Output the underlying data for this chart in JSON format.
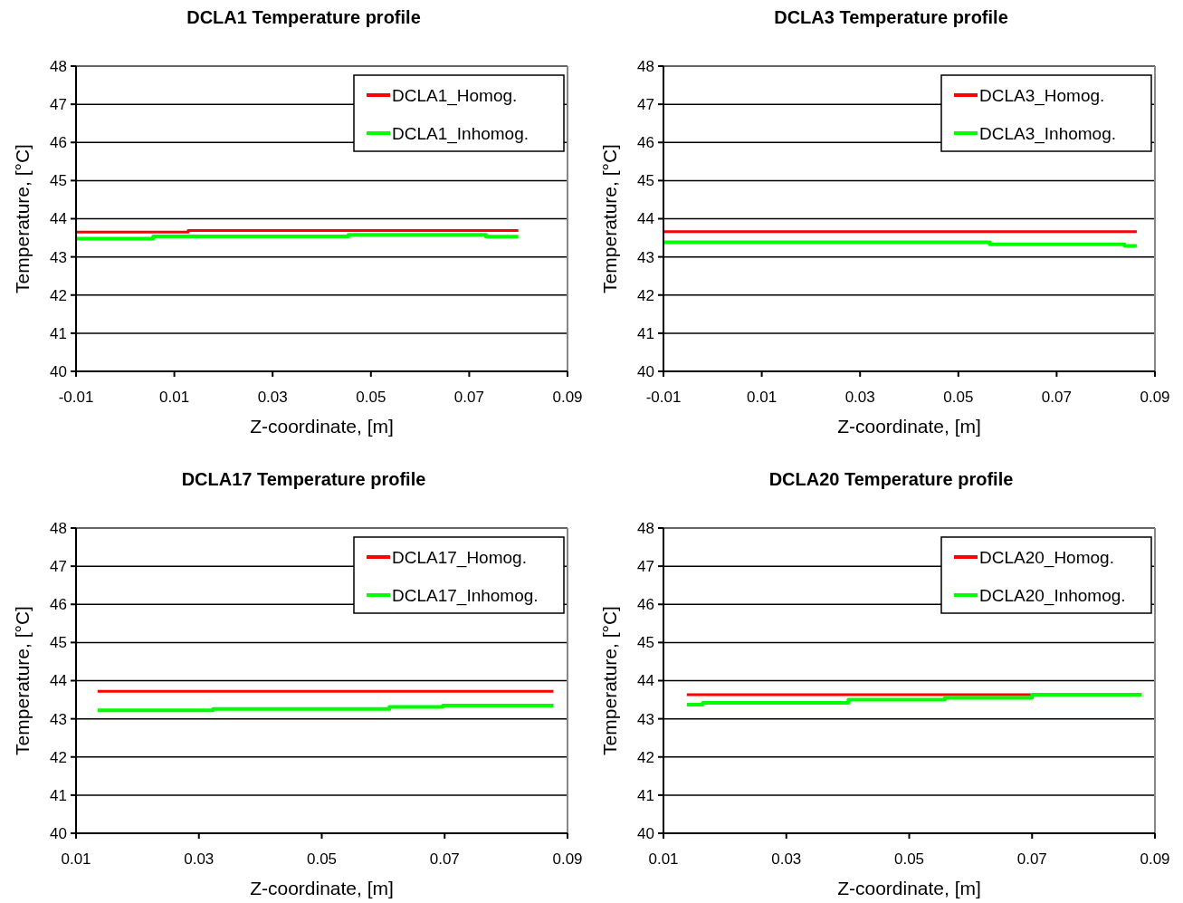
{
  "chart_data": [
    {
      "type": "step",
      "title": "DCLA1 Temperature profile",
      "xlabel": "Z-coordinate, [m]",
      "ylabel": "Temperature, [°C]",
      "xlim": [
        -0.01,
        0.09
      ],
      "xticks": [
        -0.01,
        0.01,
        0.03,
        0.05,
        0.07,
        0.09
      ],
      "ylim": [
        40,
        48
      ],
      "yticks": [
        40,
        41,
        42,
        43,
        44,
        45,
        46,
        47,
        48
      ],
      "grid": "y",
      "legend": "top right",
      "series": [
        {
          "name": "DCLA1_Homog.",
          "color": "#ff0000",
          "x": [
            -0.01,
            0.0128,
            0.08
          ],
          "values": [
            43.65,
            43.69,
            43.69
          ]
        },
        {
          "name": "DCLA1_Inhomog.",
          "color": "#00ff00",
          "x": [
            -0.01,
            0.0057,
            0.0454,
            0.0734,
            0.08
          ],
          "values": [
            43.48,
            43.54,
            43.58,
            43.53,
            43.53
          ]
        }
      ]
    },
    {
      "type": "step",
      "title": "DCLA3 Temperature profile",
      "xlabel": "Z-coordinate, [m]",
      "ylabel": "Temperature, [°C]",
      "xlim": [
        -0.01,
        0.09
      ],
      "xticks": [
        -0.01,
        0.01,
        0.03,
        0.05,
        0.07,
        0.09
      ],
      "ylim": [
        40,
        48
      ],
      "yticks": [
        40,
        41,
        42,
        43,
        44,
        45,
        46,
        47,
        48
      ],
      "grid": "y",
      "legend": "top right",
      "series": [
        {
          "name": "DCLA3_Homog.",
          "color": "#ff0000",
          "x": [
            -0.01,
            0.0863
          ],
          "values": [
            43.66,
            43.66
          ]
        },
        {
          "name": "DCLA3_Inhomog.",
          "color": "#00ff00",
          "x": [
            -0.01,
            0.0564,
            0.0838,
            0.0863
          ],
          "values": [
            43.38,
            43.33,
            43.29,
            43.29
          ]
        }
      ]
    },
    {
      "type": "step",
      "title": "DCLA17 Temperature profile",
      "xlabel": "Z-coordinate, [m]",
      "ylabel": "Temperature, [°C]",
      "xlim": [
        0.01,
        0.09
      ],
      "xticks": [
        0.01,
        0.03,
        0.05,
        0.07,
        0.09
      ],
      "ylim": [
        40,
        48
      ],
      "yticks": [
        40,
        41,
        42,
        43,
        44,
        45,
        46,
        47,
        48
      ],
      "grid": "y",
      "legend": "top right",
      "series": [
        {
          "name": "DCLA17_Homog.",
          "color": "#ff0000",
          "x": [
            0.0135,
            0.0877
          ],
          "values": [
            43.72,
            43.72
          ]
        },
        {
          "name": "DCLA17_Inhomog.",
          "color": "#00ff00",
          "x": [
            0.0135,
            0.0323,
            0.061,
            0.0697,
            0.0877
          ],
          "values": [
            43.22,
            43.26,
            43.31,
            43.35,
            43.35
          ]
        }
      ]
    },
    {
      "type": "step",
      "title": "DCLA20 Temperature profile",
      "xlabel": "Z-coordinate, [m]",
      "ylabel": "Temperature, [°C]",
      "xlim": [
        0.01,
        0.09
      ],
      "xticks": [
        0.01,
        0.03,
        0.05,
        0.07,
        0.09
      ],
      "ylim": [
        40,
        48
      ],
      "yticks": [
        40,
        41,
        42,
        43,
        44,
        45,
        46,
        47,
        48
      ],
      "grid": "y",
      "legend": "top right",
      "series": [
        {
          "name": "DCLA20_Homog.",
          "color": "#ff0000",
          "x": [
            0.0138,
            0.0698
          ],
          "values": [
            43.63,
            43.63
          ]
        },
        {
          "name": "DCLA20_Inhomog.",
          "color": "#00ff00",
          "x": [
            0.0138,
            0.0164,
            0.0401,
            0.0558,
            0.07,
            0.0878
          ],
          "values": [
            43.37,
            43.42,
            43.5,
            43.55,
            43.63,
            43.63
          ]
        }
      ]
    }
  ]
}
